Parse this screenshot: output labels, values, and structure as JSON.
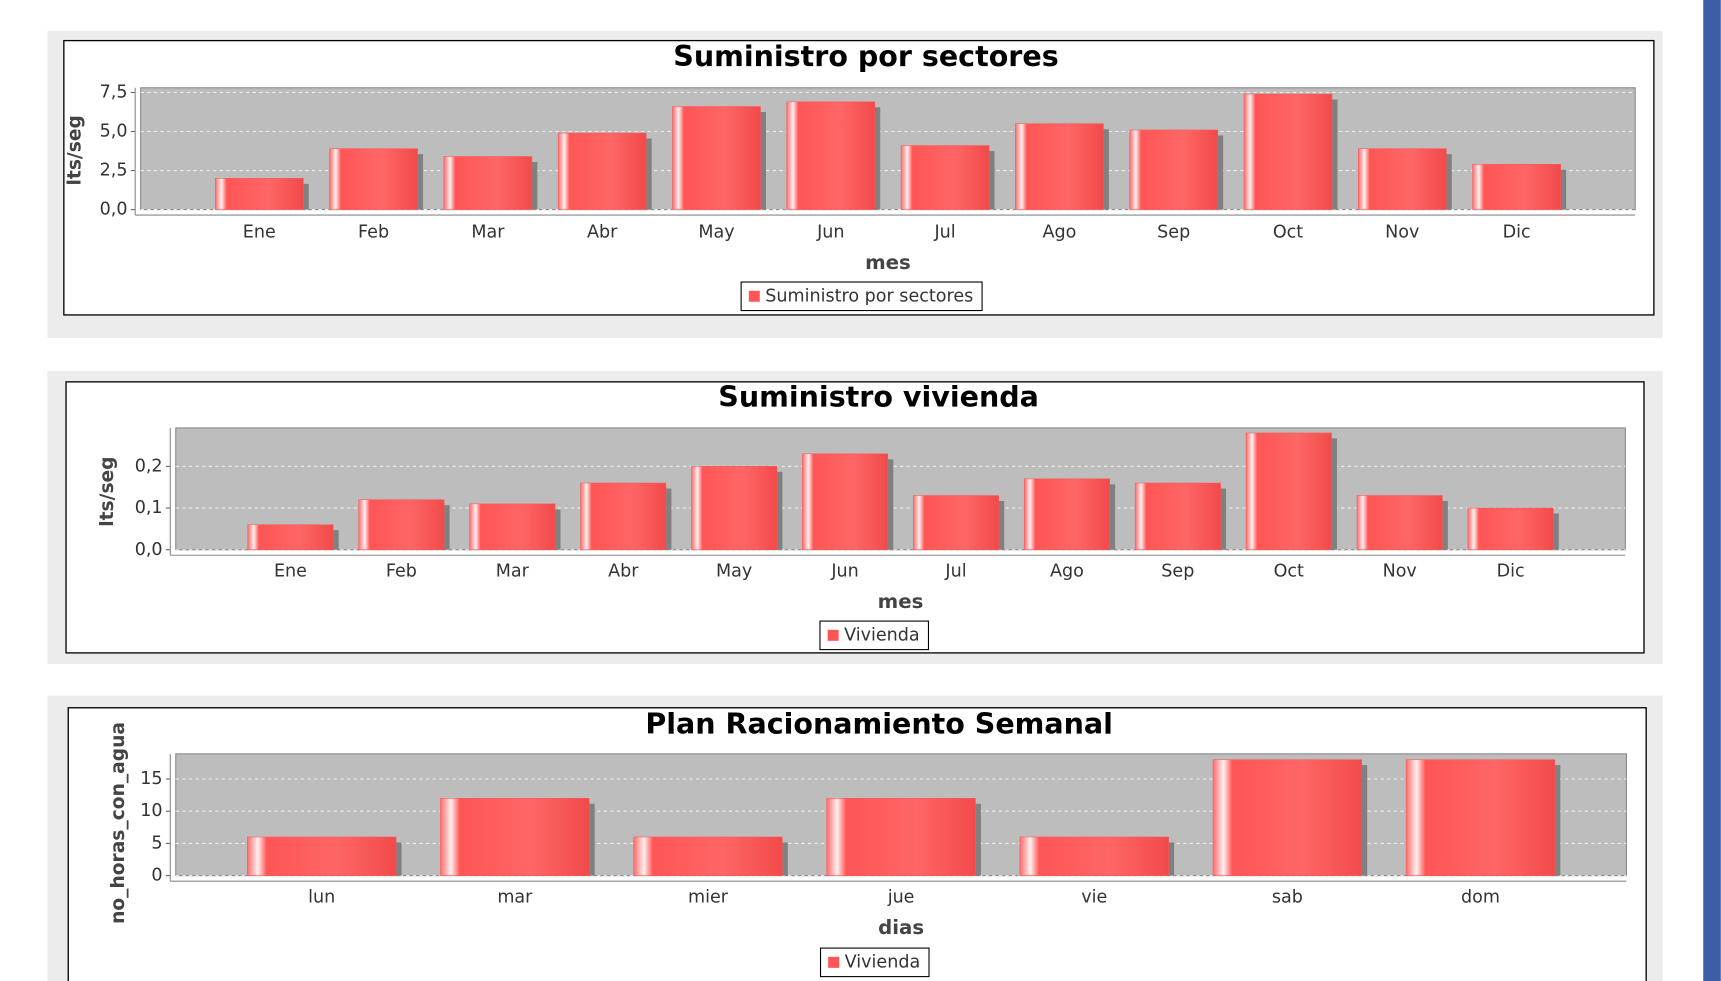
{
  "chart_data": [
    {
      "type": "bar",
      "title": "Suministro por sectores",
      "x_label": "mes",
      "y_label": "lts/seg",
      "categories": [
        "Ene",
        "Feb",
        "Mar",
        "Abr",
        "May",
        "Jun",
        "Jul",
        "Ago",
        "Sep",
        "Oct",
        "Nov",
        "Dic"
      ],
      "series": [
        {
          "name": "Suministro por sectores",
          "color": "#ff5555",
          "values": [
            2.0,
            3.9,
            3.4,
            4.9,
            6.6,
            6.9,
            4.1,
            5.5,
            5.1,
            7.4,
            3.9,
            2.9
          ]
        }
      ],
      "ylim": [
        0,
        7.8
      ],
      "yticks": [
        {
          "value": 0,
          "label": "0,0"
        },
        {
          "value": 2.5,
          "label": "2,5"
        },
        {
          "value": 5,
          "label": "5,0"
        },
        {
          "value": 7.5,
          "label": "7,5"
        }
      ],
      "grid": true
    },
    {
      "type": "bar",
      "title": "Suministro vivienda",
      "x_label": "mes",
      "y_label": "lts/seg",
      "categories": [
        "Ene",
        "Feb",
        "Mar",
        "Abr",
        "May",
        "Jun",
        "Jul",
        "Ago",
        "Sep",
        "Oct",
        "Nov",
        "Dic"
      ],
      "series": [
        {
          "name": "Vivienda",
          "color": "#ff5555",
          "values": [
            0.06,
            0.12,
            0.11,
            0.16,
            0.2,
            0.23,
            0.13,
            0.17,
            0.16,
            0.28,
            0.13,
            0.1
          ]
        }
      ],
      "ylim": [
        0,
        0.292
      ],
      "yticks": [
        {
          "value": 0,
          "label": "0,0"
        },
        {
          "value": 0.1,
          "label": "0,1"
        },
        {
          "value": 0.2,
          "label": "0,2"
        }
      ],
      "grid": true
    },
    {
      "type": "bar",
      "title": "Plan Racionamiento Semanal",
      "x_label": "dias",
      "y_label": "no_horas_con_agua",
      "categories": [
        "lun",
        "mar",
        "mier",
        "jue",
        "vie",
        "sab",
        "dom"
      ],
      "series": [
        {
          "name": "Vivienda",
          "color": "#ff5555",
          "values": [
            6,
            12,
            6,
            12,
            6,
            18,
            18
          ]
        }
      ],
      "ylim": [
        0,
        18.9
      ],
      "yticks": [
        0,
        5,
        10,
        15
      ],
      "grid": true
    }
  ]
}
